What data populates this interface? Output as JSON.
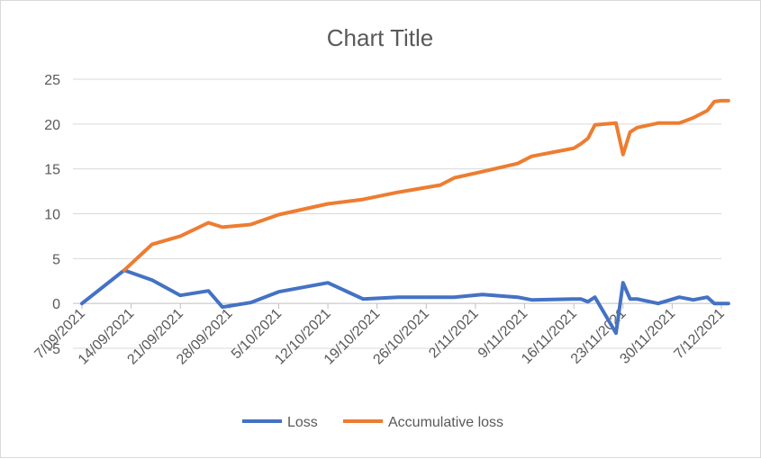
{
  "chart_data": {
    "type": "line",
    "title": "Chart Title",
    "xlabel": "",
    "ylabel": "",
    "ylim": [
      -5,
      25
    ],
    "y_ticks": [
      25,
      20,
      15,
      10,
      5,
      0,
      -5
    ],
    "grid": true,
    "legend_position": "bottom",
    "x_tick_labels": [
      "7/09/2021",
      "14/09/2021",
      "21/09/2021",
      "28/09/2021",
      "5/10/2021",
      "12/10/2021",
      "19/10/2021",
      "26/10/2021",
      "2/11/2021",
      "9/11/2021",
      "16/11/2021",
      "23/11/2021",
      "30/11/2021",
      "7/12/2021"
    ],
    "x": [
      "7/09/2021",
      "13/09/2021",
      "17/09/2021",
      "21/09/2021",
      "25/09/2021",
      "27/09/2021",
      "1/10/2021",
      "5/10/2021",
      "12/10/2021",
      "17/10/2021",
      "22/10/2021",
      "28/10/2021",
      "30/10/2021",
      "3/11/2021",
      "8/11/2021",
      "10/11/2021",
      "16/11/2021",
      "17/11/2021",
      "18/11/2021",
      "19/11/2021",
      "22/11/2021",
      "23/11/2021",
      "24/11/2021",
      "25/11/2021",
      "28/11/2021",
      "1/12/2021",
      "3/12/2021",
      "5/12/2021",
      "6/12/2021",
      "7/12/2021",
      "8/12/2021"
    ],
    "series": [
      {
        "name": "Loss",
        "color": "#4472c4",
        "values": [
          0,
          3.7,
          2.6,
          0.9,
          1.4,
          -0.4,
          0.1,
          1.3,
          2.3,
          0.5,
          0.7,
          0.7,
          0.7,
          1.0,
          0.7,
          0.4,
          0.5,
          0.5,
          0.2,
          0.7,
          -3.3,
          2.3,
          0.5,
          0.5,
          0.0,
          0.7,
          0.4,
          0.7,
          0.0,
          0.0,
          0.0
        ]
      },
      {
        "name": "Accumulative loss",
        "color": "#ed7d31",
        "values": [
          null,
          3.7,
          6.6,
          7.5,
          9.0,
          8.5,
          8.8,
          9.9,
          11.1,
          11.6,
          12.4,
          13.2,
          14.0,
          14.7,
          15.6,
          16.4,
          17.3,
          17.8,
          18.4,
          19.9,
          20.1,
          16.6,
          19.1,
          19.6,
          20.1,
          20.1,
          20.7,
          21.5,
          22.5,
          22.6,
          22.6
        ]
      }
    ]
  }
}
